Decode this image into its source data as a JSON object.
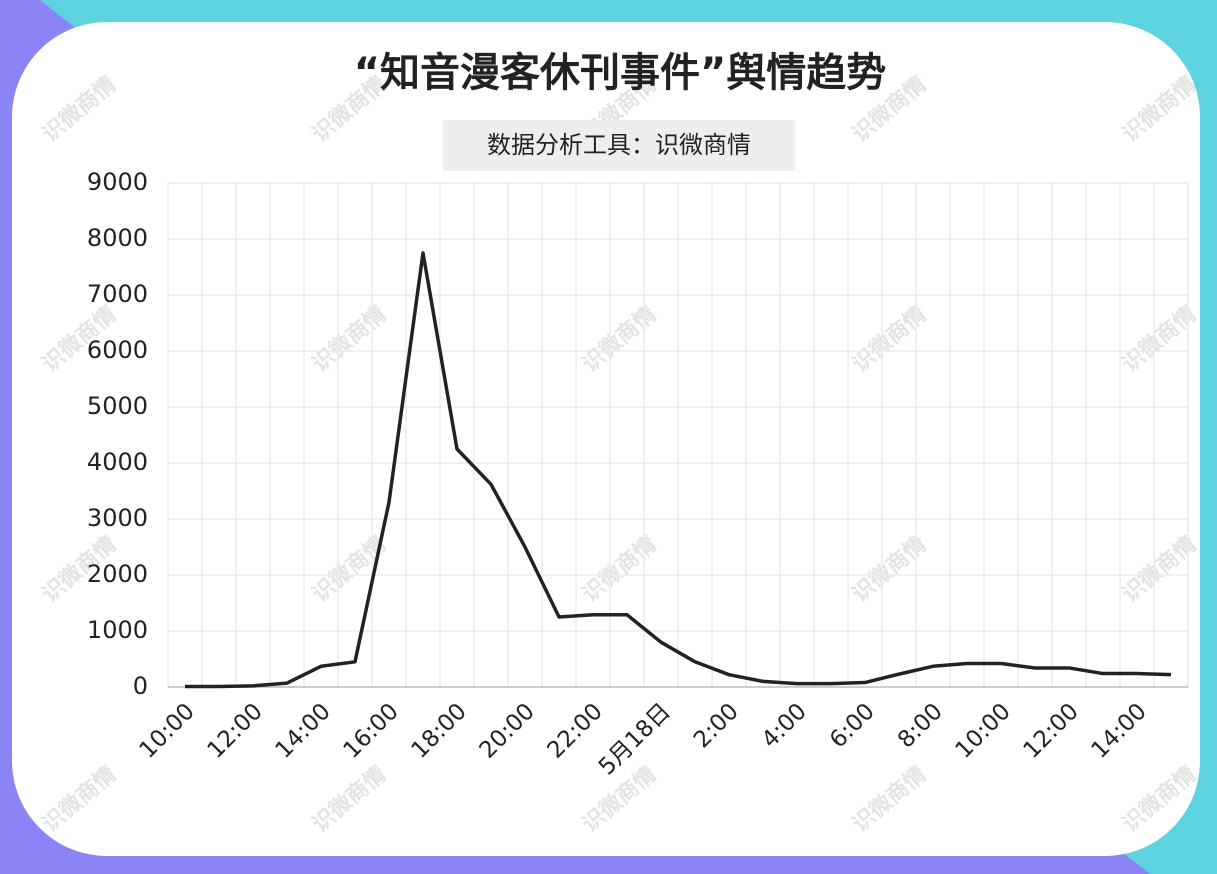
{
  "chart_data": {
    "type": "line",
    "title": "“知音漫客休刊事件”舆情趋势",
    "subtitle": "数据分析工具：识微商情",
    "watermark": "识微商情",
    "categories": [
      "10:00",
      null,
      "12:00",
      null,
      "14:00",
      null,
      "16:00",
      null,
      "18:00",
      null,
      "20:00",
      null,
      "22:00",
      null,
      "5月18日",
      null,
      "2:00",
      null,
      "4:00",
      null,
      "6:00",
      null,
      "8:00",
      null,
      "10:00",
      null,
      "12:00",
      null,
      "14:00",
      null
    ],
    "values": [
      10,
      10,
      20,
      70,
      370,
      450,
      3300,
      7750,
      4250,
      3620,
      2500,
      1250,
      1290,
      1290,
      800,
      450,
      220,
      100,
      60,
      60,
      80,
      230,
      370,
      420,
      420,
      340,
      340,
      240,
      240,
      220
    ],
    "color": "#222222",
    "ylim": [
      0,
      9000
    ],
    "yticks": [
      0,
      1000,
      2000,
      3000,
      4000,
      5000,
      6000,
      7000,
      8000,
      9000
    ],
    "grid": true
  }
}
